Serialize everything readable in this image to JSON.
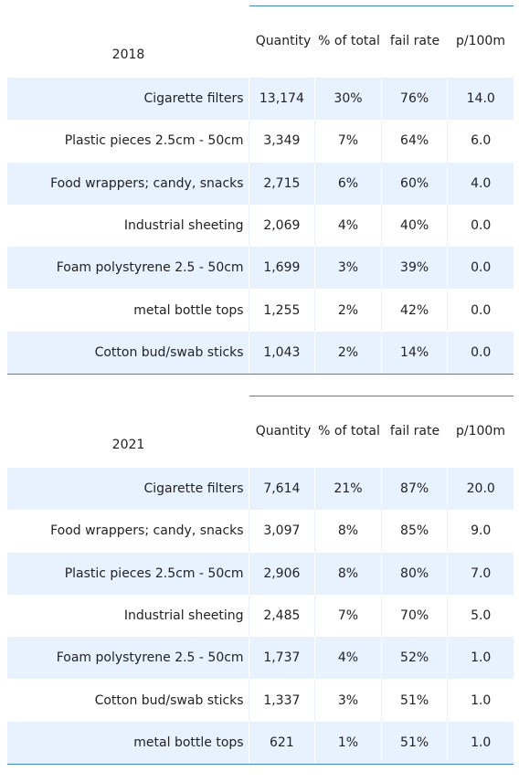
{
  "chart_data": [
    {
      "type": "table",
      "year": "2018",
      "columns": [
        "Quantity",
        "% of total",
        "fail rate",
        "p/100m"
      ],
      "rows": [
        {
          "item": "Cigarette filters",
          "quantity": "13,174",
          "pct_total": "30%",
          "fail_rate": "76%",
          "p100m": "14.0"
        },
        {
          "item": "Plastic pieces 2.5cm - 50cm",
          "quantity": "3,349",
          "pct_total": "7%",
          "fail_rate": "64%",
          "p100m": "6.0"
        },
        {
          "item": "Food wrappers; candy, snacks",
          "quantity": "2,715",
          "pct_total": "6%",
          "fail_rate": "60%",
          "p100m": "4.0"
        },
        {
          "item": "Industrial sheeting",
          "quantity": "2,069",
          "pct_total": "4%",
          "fail_rate": "40%",
          "p100m": "0.0"
        },
        {
          "item": "Foam polystyrene  2.5 - 50cm",
          "quantity": "1,699",
          "pct_total": "3%",
          "fail_rate": "39%",
          "p100m": "0.0"
        },
        {
          "item": "metal bottle tops",
          "quantity": "1,255",
          "pct_total": "2%",
          "fail_rate": "42%",
          "p100m": "0.0"
        },
        {
          "item": "Cotton bud/swab sticks",
          "quantity": "1,043",
          "pct_total": "2%",
          "fail_rate": "14%",
          "p100m": "0.0"
        }
      ]
    },
    {
      "type": "table",
      "year": "2021",
      "columns": [
        "Quantity",
        "% of total",
        "fail rate",
        "p/100m"
      ],
      "rows": [
        {
          "item": "Cigarette filters",
          "quantity": "7,614",
          "pct_total": "21%",
          "fail_rate": "87%",
          "p100m": "20.0"
        },
        {
          "item": "Food wrappers; candy, snacks",
          "quantity": "3,097",
          "pct_total": "8%",
          "fail_rate": "85%",
          "p100m": "9.0"
        },
        {
          "item": "Plastic pieces 2.5cm - 50cm",
          "quantity": "2,906",
          "pct_total": "8%",
          "fail_rate": "80%",
          "p100m": "7.0"
        },
        {
          "item": "Industrial sheeting",
          "quantity": "2,485",
          "pct_total": "7%",
          "fail_rate": "70%",
          "p100m": "5.0"
        },
        {
          "item": "Foam polystyrene  2.5 - 50cm",
          "quantity": "1,737",
          "pct_total": "4%",
          "fail_rate": "52%",
          "p100m": "1.0"
        },
        {
          "item": "Cotton bud/swab sticks",
          "quantity": "1,337",
          "pct_total": "3%",
          "fail_rate": "51%",
          "p100m": "1.0"
        },
        {
          "item": "metal bottle tops",
          "quantity": "621",
          "pct_total": "1%",
          "fail_rate": "51%",
          "p100m": "1.0"
        }
      ]
    }
  ],
  "colors": {
    "row_shade": "#e8f2ff",
    "rule": "#3a86c8",
    "text": "#222222"
  }
}
